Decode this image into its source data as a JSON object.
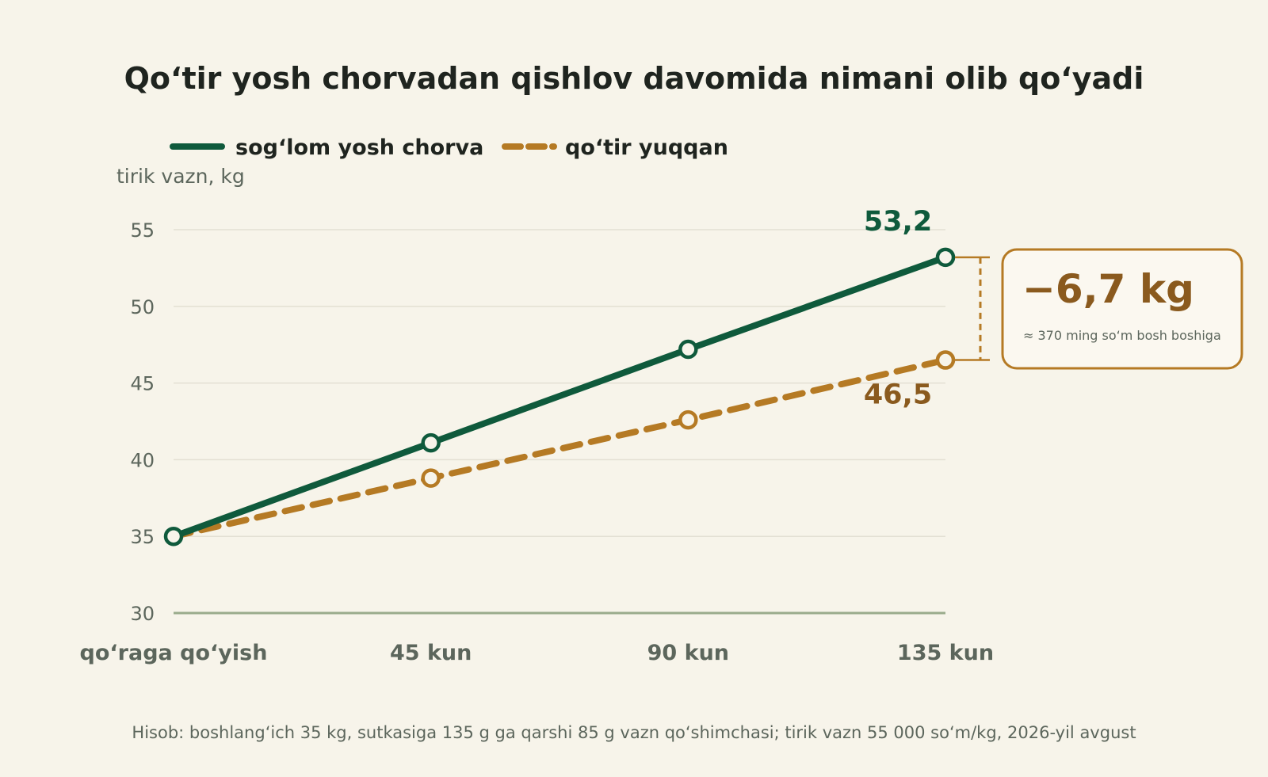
{
  "title": "Qo‘tir yosh chorvadan qishlov davomida nimani olib qo‘yadi",
  "colors": {
    "background": "#f7f4ea",
    "healthy": "#0f5a3c",
    "infected": "#b57a24",
    "infected_text": "#8a5a1e",
    "grid": "#e3e0d3",
    "axis": "#9aab8c",
    "muted_text": "#5c665c"
  },
  "legend": {
    "healthy_label": "sog‘lom yosh chorva",
    "infected_label": "qo‘tir yuqqan"
  },
  "chart_data": {
    "type": "line",
    "title": "Qo‘tir yosh chorvadan qishlov davomida nimani olib qo‘yadi",
    "ylabel": "tirik vazn, kg",
    "xlabel": "",
    "categories": [
      "qo‘raga qo‘yish",
      "45 kun",
      "90 kun",
      "135 kun"
    ],
    "ylim": [
      30,
      55
    ],
    "yticks": [
      30,
      35,
      40,
      45,
      50,
      55
    ],
    "grid": true,
    "legend_position": "top-left",
    "series": [
      {
        "name": "sog‘lom yosh chorva",
        "values": [
          35.0,
          41.1,
          47.2,
          53.2
        ],
        "style": "solid",
        "end_label": "53,2"
      },
      {
        "name": "qo‘tir yuqqan",
        "values": [
          35.0,
          38.8,
          42.6,
          46.5
        ],
        "style": "dashed",
        "end_label": "46,5"
      }
    ],
    "annotation": {
      "value": "−6,7 kg",
      "note": "≈ 370 ming so‘m bosh boshiga"
    }
  },
  "footnote": "Hisob: boshlang‘ich 35 kg, sutkasiga 135 g ga qarshi 85 g vazn qo‘shimchasi; tirik vazn 55 000 so‘m/kg, 2026-yil avgust"
}
